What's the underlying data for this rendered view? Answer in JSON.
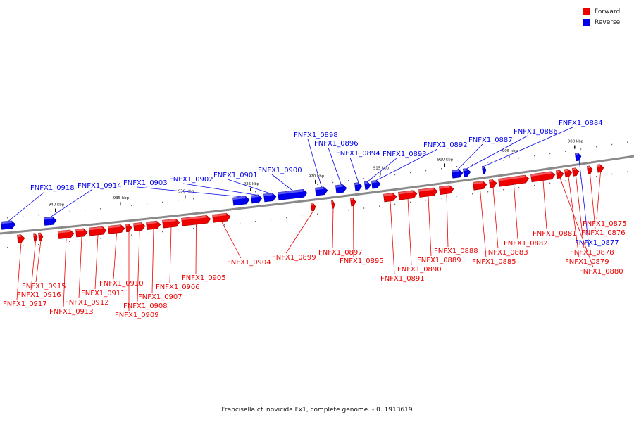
{
  "legend": {
    "forward_label": "Forward",
    "reverse_label": "Reverse",
    "forward_color": "#ee0000",
    "reverse_color": "#0000ee"
  },
  "caption": "Francisella cf. novicida Fx1, complete genome. - 0..1913619",
  "scale_labels": [
    "940 kbp",
    "935 kbp",
    "930 kbp",
    "925 kbp",
    "920 kbp",
    "915 kbp",
    "910 kbp",
    "905 kbp",
    "900 kbp"
  ],
  "genes": [
    {
      "name": "FNFX1_0918",
      "strand": "reverse"
    },
    {
      "name": "FNFX1_0917",
      "strand": "forward"
    },
    {
      "name": "FNFX1_0916",
      "strand": "forward"
    },
    {
      "name": "FNFX1_0915",
      "strand": "forward"
    },
    {
      "name": "FNFX1_0914",
      "strand": "reverse"
    },
    {
      "name": "FNFX1_0913",
      "strand": "forward"
    },
    {
      "name": "FNFX1_0912",
      "strand": "forward"
    },
    {
      "name": "FNFX1_0911",
      "strand": "forward"
    },
    {
      "name": "FNFX1_0910",
      "strand": "forward"
    },
    {
      "name": "FNFX1_0909",
      "strand": "forward"
    },
    {
      "name": "FNFX1_0908",
      "strand": "forward"
    },
    {
      "name": "FNFX1_0907",
      "strand": "forward"
    },
    {
      "name": "FNFX1_0906",
      "strand": "forward"
    },
    {
      "name": "FNFX1_0905",
      "strand": "forward"
    },
    {
      "name": "FNFX1_0904",
      "strand": "forward"
    },
    {
      "name": "FNFX1_0903",
      "strand": "reverse"
    },
    {
      "name": "FNFX1_0902",
      "strand": "reverse"
    },
    {
      "name": "FNFX1_0901",
      "strand": "reverse"
    },
    {
      "name": "FNFX1_0900",
      "strand": "reverse"
    },
    {
      "name": "FNFX1_0899",
      "strand": "forward"
    },
    {
      "name": "FNFX1_0898",
      "strand": "reverse"
    },
    {
      "name": "FNFX1_0897",
      "strand": "forward"
    },
    {
      "name": "FNFX1_0896",
      "strand": "reverse"
    },
    {
      "name": "FNFX1_0895",
      "strand": "forward"
    },
    {
      "name": "FNFX1_0894",
      "strand": "reverse"
    },
    {
      "name": "FNFX1_0893",
      "strand": "reverse"
    },
    {
      "name": "FNFX1_0892",
      "strand": "reverse"
    },
    {
      "name": "FNFX1_0891",
      "strand": "forward"
    },
    {
      "name": "FNFX1_0890",
      "strand": "forward"
    },
    {
      "name": "FNFX1_0889",
      "strand": "forward"
    },
    {
      "name": "FNFX1_0888",
      "strand": "forward"
    },
    {
      "name": "FNFX1_0887",
      "strand": "reverse"
    },
    {
      "name": "FNFX1_0886",
      "strand": "reverse"
    },
    {
      "name": "FNFX1_0885",
      "strand": "forward"
    },
    {
      "name": "FNFX1_0884",
      "strand": "reverse"
    },
    {
      "name": "FNFX1_0883",
      "strand": "forward"
    },
    {
      "name": "FNFX1_0882",
      "strand": "forward"
    },
    {
      "name": "FNFX1_0881",
      "strand": "forward"
    },
    {
      "name": "FNFX1_0880",
      "strand": "forward"
    },
    {
      "name": "FNFX1_0879",
      "strand": "forward"
    },
    {
      "name": "FNFX1_0878",
      "strand": "forward"
    },
    {
      "name": "FNFX1_0877",
      "strand": "reverse"
    },
    {
      "name": "FNFX1_0876",
      "strand": "forward"
    },
    {
      "name": "FNFX1_0875",
      "strand": "forward"
    }
  ]
}
